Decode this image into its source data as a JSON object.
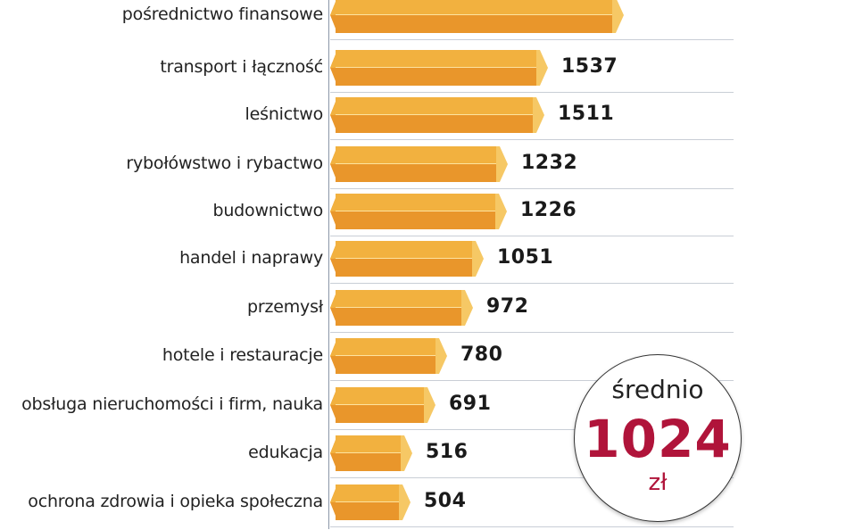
{
  "chart_data": {
    "type": "bar",
    "orientation": "horizontal",
    "title": "",
    "xlabel": "",
    "ylabel": "",
    "unit": "zł",
    "categories": [
      "pośrednictwo finansowe",
      "transport i łączność",
      "leśnictwo",
      "rybołówstwo i rybactwo",
      "budownictwo",
      "handel i naprawy",
      "przemysł",
      "hotele i restauracje",
      "obsługa nieruchomości i firm, nauka",
      "edukacja",
      "ochrona zdrowia i opieka społeczna"
    ],
    "values": [
      null,
      1537,
      1511,
      1232,
      1226,
      1051,
      972,
      780,
      691,
      516,
      504
    ],
    "estimated_values": [
      2110,
      1537,
      1511,
      1232,
      1226,
      1051,
      972,
      780,
      691,
      516,
      504
    ],
    "value_labels": [
      "",
      "1537",
      "1511",
      "1232",
      "1226",
      "1051",
      "972",
      "780",
      "691",
      "516",
      "504"
    ],
    "grid": "horizontal separators",
    "annotations": [
      {
        "type": "callout-circle",
        "lines": [
          "średnio",
          "1024",
          "zł"
        ]
      }
    ],
    "colors": {
      "bar_top": "#f2b13f",
      "bar_bottom": "#e9962b",
      "bar_cap": "#f6c865",
      "average_value": "#b0143a"
    }
  },
  "average": {
    "label": "średnio",
    "value": "1024",
    "unit": "zł"
  }
}
